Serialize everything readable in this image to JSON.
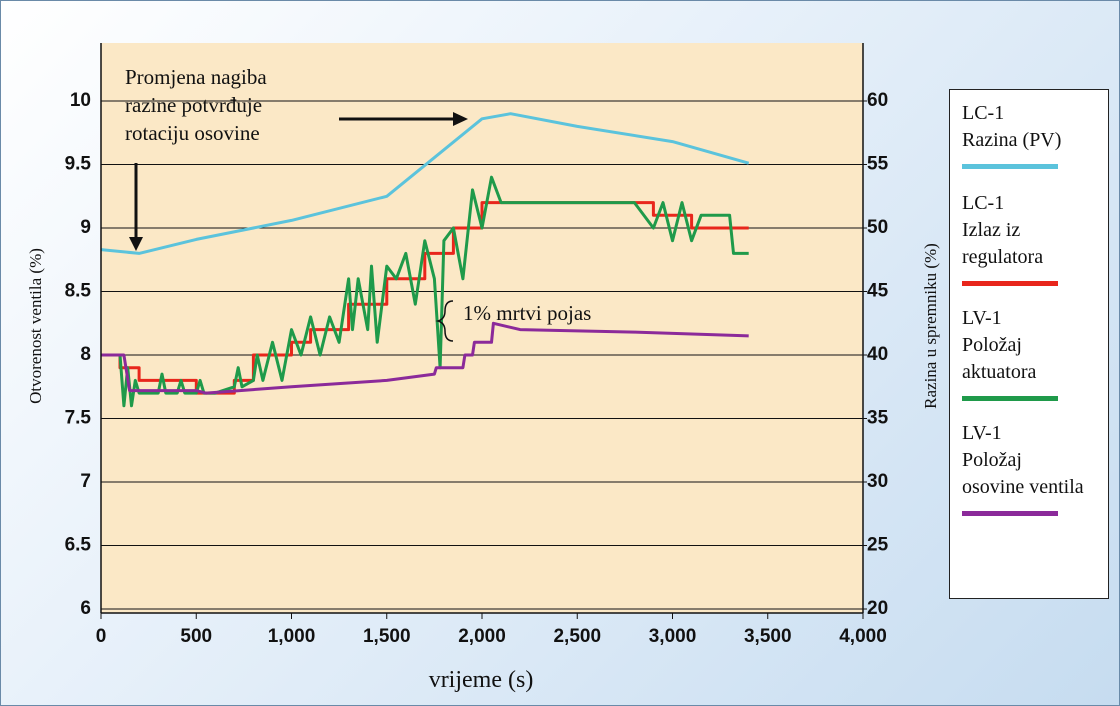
{
  "chart_data": {
    "type": "line",
    "annotation": "Promjena nagiba\nrazine potvrđuje\nrotaciju osovine",
    "deadband_label": "1% mrtvi pojas",
    "xlabel": "vrijeme (s)",
    "ylabel": "Otvorenost ventila (%)",
    "y2label": "Razina u spremniku (%)",
    "xlim": [
      0,
      4000
    ],
    "xticks": [
      0,
      500,
      {
        "value": 1000,
        "label": "1,000"
      },
      {
        "value": 1500,
        "label": "1,500"
      },
      {
        "value": 2000,
        "label": "2,000"
      },
      {
        "value": 2500,
        "label": "2,500"
      },
      {
        "value": 3000,
        "label": "3,000"
      },
      {
        "value": 3500,
        "label": "3,500"
      },
      {
        "value": 4000,
        "label": "4,000"
      }
    ],
    "ylim": [
      6,
      10
    ],
    "yticks": [
      6,
      6.5,
      7,
      7.5,
      8,
      8.5,
      9,
      9.5,
      10
    ],
    "y2lim": [
      20,
      60
    ],
    "y2ticks": [
      20,
      25,
      30,
      35,
      40,
      45,
      50,
      55,
      60
    ],
    "grid": true,
    "series": [
      {
        "name": "LC-1\nRazina (PV)",
        "color": "#5bc3dc",
        "axis": "y2",
        "x": [
          0,
          200,
          500,
          1000,
          1500,
          2000,
          2150,
          2500,
          3000,
          3400
        ],
        "values": [
          48.3,
          48,
          49.1,
          50.6,
          52.5,
          58.6,
          59,
          58,
          56.8,
          55.1
        ]
      },
      {
        "name": "LC-1\nIzlaz iz\nregulatora",
        "color": "#e8261c",
        "x": [
          0,
          100,
          100,
          200,
          200,
          500,
          500,
          700,
          700,
          800,
          800,
          1000,
          1000,
          1100,
          1100,
          1300,
          1300,
          1500,
          1500,
          1700,
          1700,
          1850,
          1850,
          2000,
          2000,
          2900,
          2900,
          3100,
          3100,
          3400
        ],
        "values": [
          8,
          8,
          7.9,
          7.9,
          7.8,
          7.8,
          7.7,
          7.7,
          7.8,
          7.8,
          8.0,
          8.0,
          8.1,
          8.1,
          8.2,
          8.2,
          8.4,
          8.4,
          8.6,
          8.6,
          8.8,
          8.8,
          9.0,
          9.0,
          9.2,
          9.2,
          9.1,
          9.1,
          9.0,
          9.0
        ]
      },
      {
        "name": "LV-1\nPoložaj\naktuatora",
        "color": "#1f9a4a",
        "x": [
          0,
          100,
          120,
          140,
          160,
          180,
          200,
          300,
          320,
          340,
          400,
          420,
          440,
          500,
          520,
          540,
          600,
          700,
          720,
          740,
          800,
          820,
          850,
          900,
          950,
          1000,
          1050,
          1100,
          1150,
          1200,
          1250,
          1300,
          1320,
          1350,
          1400,
          1420,
          1450,
          1500,
          1550,
          1600,
          1650,
          1700,
          1750,
          1780,
          1800,
          1850,
          1900,
          1950,
          2000,
          2050,
          2100,
          2150,
          2200,
          2500,
          2800,
          2900,
          2950,
          3000,
          3050,
          3100,
          3150,
          3200,
          3300,
          3320,
          3350,
          3400
        ],
        "values": [
          8,
          8,
          7.6,
          7.9,
          7.6,
          7.8,
          7.7,
          7.7,
          7.85,
          7.7,
          7.7,
          7.8,
          7.7,
          7.7,
          7.8,
          7.7,
          7.7,
          7.75,
          7.9,
          7.75,
          7.8,
          8,
          7.8,
          8.1,
          7.8,
          8.2,
          8.0,
          8.3,
          8.0,
          8.3,
          8.1,
          8.6,
          8.2,
          8.6,
          8.2,
          8.7,
          8.1,
          8.7,
          8.6,
          8.8,
          8.4,
          8.9,
          8.6,
          7.9,
          8.9,
          9.0,
          8.6,
          9.3,
          9.0,
          9.4,
          9.2,
          9.2,
          9.2,
          9.2,
          9.2,
          9.0,
          9.2,
          8.9,
          9.2,
          8.9,
          9.1,
          9.1,
          9.1,
          8.8,
          8.8,
          8.8
        ]
      },
      {
        "name": "LV-1\nPoložaj\nosovine ventila",
        "color": "#8b2a9a",
        "x": [
          0,
          120,
          150,
          500,
          550,
          1000,
          1500,
          1750,
          1760,
          1900,
          1910,
          1950,
          1960,
          2050,
          2060,
          2200,
          2800,
          3400
        ],
        "values": [
          8,
          8,
          7.72,
          7.72,
          7.7,
          7.75,
          7.8,
          7.85,
          7.9,
          7.9,
          8.0,
          8.0,
          8.1,
          8.1,
          8.25,
          8.2,
          8.18,
          8.15
        ]
      }
    ]
  }
}
